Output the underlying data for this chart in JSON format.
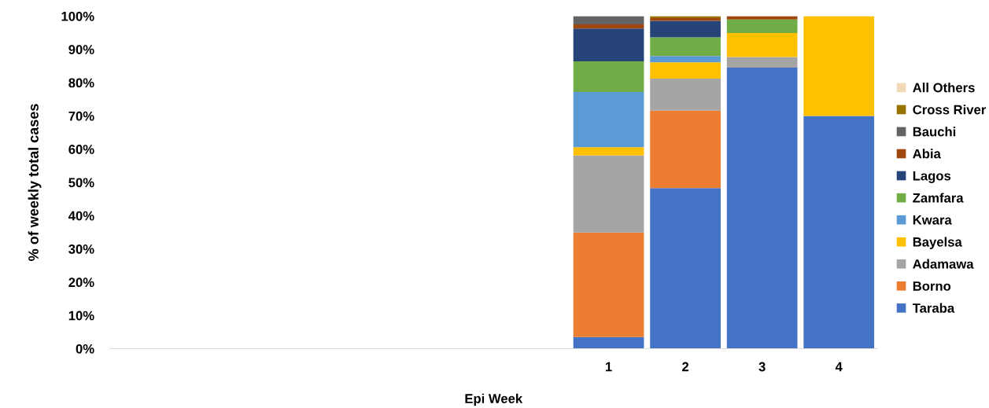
{
  "chart_data": {
    "type": "bar",
    "stacked": true,
    "xlabel": "Epi Week",
    "ylabel": "% of weekly total cases",
    "categories": [
      null,
      null,
      null,
      null,
      null,
      null,
      "1",
      "2",
      "3",
      "4"
    ],
    "ylim": [
      0,
      100
    ],
    "yticks": [
      {
        "value": 0,
        "label": "0%"
      },
      {
        "value": 10,
        "label": "10%"
      },
      {
        "value": 20,
        "label": "20%"
      },
      {
        "value": 30,
        "label": "30%"
      },
      {
        "value": 40,
        "label": "40%"
      },
      {
        "value": 50,
        "label": "50%"
      },
      {
        "value": 60,
        "label": "60%"
      },
      {
        "value": 70,
        "label": "70%"
      },
      {
        "value": 80,
        "label": "80%"
      },
      {
        "value": 90,
        "label": "90%"
      },
      {
        "value": 100,
        "label": "100%"
      }
    ],
    "grid": false,
    "legend": "right",
    "series": [
      {
        "name": "Taraba",
        "color": "#4472c4",
        "values": [
          null,
          null,
          null,
          null,
          null,
          null,
          3.5,
          48.3,
          84.5,
          70.0
        ]
      },
      {
        "name": "Borno",
        "color": "#ed7d31",
        "values": [
          null,
          null,
          null,
          null,
          null,
          null,
          31.4,
          23.3,
          0,
          0
        ]
      },
      {
        "name": "Adamawa",
        "color": "#a5a5a5",
        "values": [
          null,
          null,
          null,
          null,
          null,
          null,
          23.2,
          9.6,
          3.2,
          0
        ]
      },
      {
        "name": "Bayelsa",
        "color": "#ffc000",
        "values": [
          null,
          null,
          null,
          null,
          null,
          null,
          2.5,
          4.9,
          7.2,
          30.0
        ]
      },
      {
        "name": "Kwara",
        "color": "#5b9bd5",
        "values": [
          null,
          null,
          null,
          null,
          null,
          null,
          16.6,
          1.9,
          0,
          0
        ]
      },
      {
        "name": "Zamfara",
        "color": "#70ad47",
        "values": [
          null,
          null,
          null,
          null,
          null,
          null,
          9.2,
          5.6,
          4.1,
          0
        ]
      },
      {
        "name": "Lagos",
        "color": "#264478",
        "values": [
          null,
          null,
          null,
          null,
          null,
          null,
          9.9,
          5.0,
          0,
          0
        ]
      },
      {
        "name": "Abia",
        "color": "#9e480e",
        "values": [
          null,
          null,
          null,
          null,
          null,
          null,
          1.2,
          0.8,
          1.0,
          0
        ]
      },
      {
        "name": "Bauchi",
        "color": "#636363",
        "values": [
          null,
          null,
          null,
          null,
          null,
          null,
          2.5,
          0,
          0,
          0
        ]
      },
      {
        "name": "Cross River",
        "color": "#997300",
        "values": [
          null,
          null,
          null,
          null,
          null,
          null,
          0,
          0.6,
          0,
          0
        ]
      },
      {
        "name": "All Others",
        "color": "#f1d9b5",
        "values": [
          null,
          null,
          null,
          null,
          null,
          null,
          0,
          0,
          0,
          0
        ]
      }
    ]
  }
}
